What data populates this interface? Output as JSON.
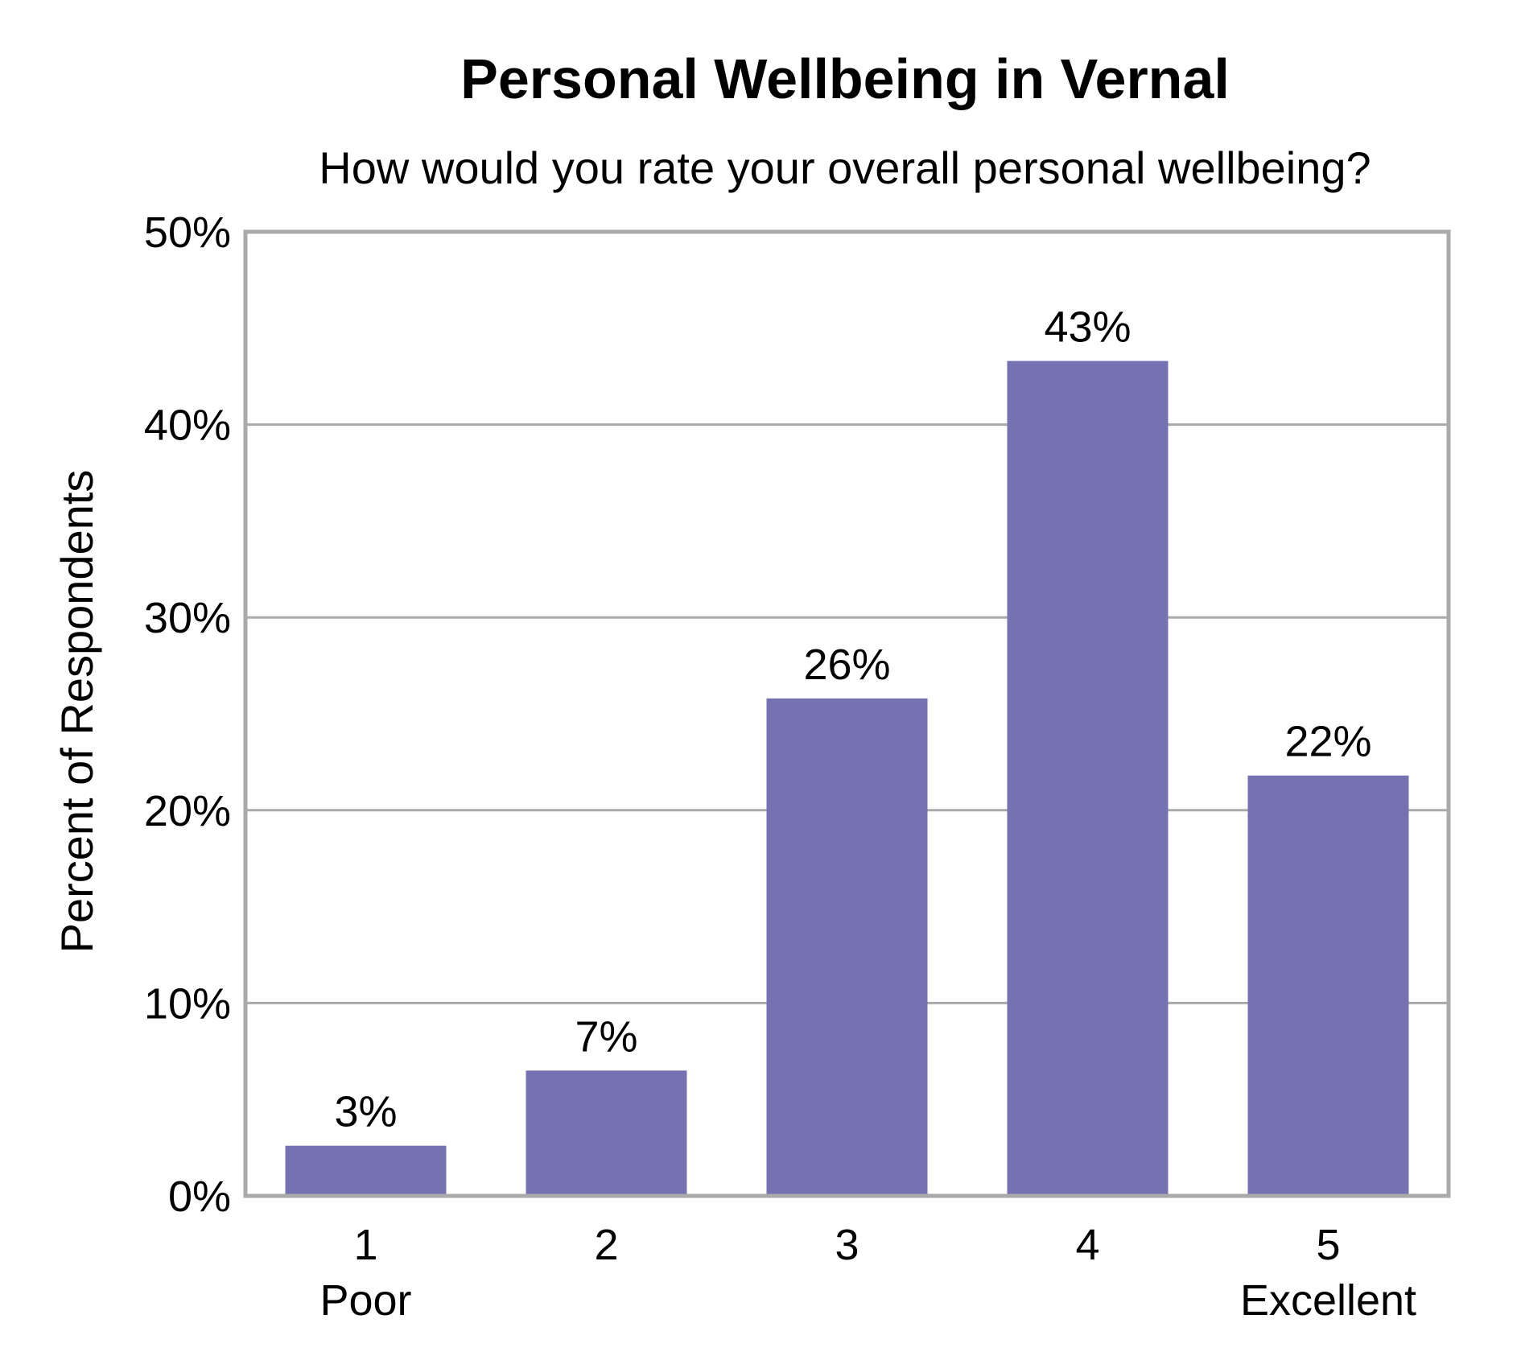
{
  "chart_data": {
    "type": "bar",
    "title": "Personal Wellbeing in Vernal",
    "subtitle": "How would you rate your overall personal wellbeing?",
    "xlabel": "",
    "ylabel": "Percent of Respondents",
    "categories": [
      "1",
      "2",
      "3",
      "4",
      "5"
    ],
    "category_sublabels": [
      "Poor",
      "",
      "",
      "",
      "Excellent"
    ],
    "values": [
      2.6,
      6.5,
      25.8,
      43.3,
      21.8
    ],
    "data_labels": [
      "3%",
      "7%",
      "26%",
      "43%",
      "22%"
    ],
    "ylim": [
      0,
      50
    ],
    "yticks": [
      0,
      10,
      20,
      30,
      40,
      50
    ],
    "ytick_labels": [
      "0%",
      "10%",
      "20%",
      "30%",
      "40%",
      "50%"
    ],
    "grid": true,
    "legend": "none",
    "colors": {
      "bar": "#7672b2",
      "grid": "#aaaaaa",
      "frame": "#aaaaaa",
      "text": "#000000"
    }
  }
}
